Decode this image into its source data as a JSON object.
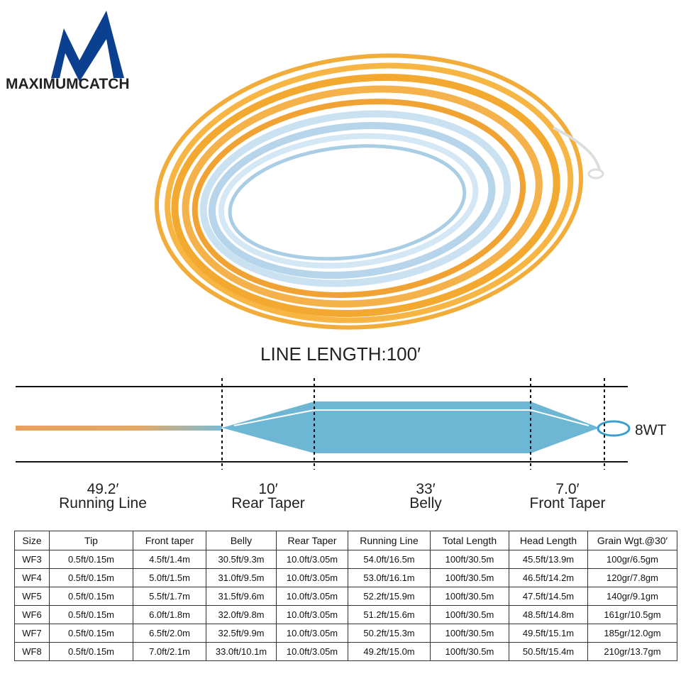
{
  "brand": "MAXIMUMCATCH",
  "diagram": {
    "title": "LINE LENGTH:100′",
    "weight": "8WT",
    "segments": [
      {
        "length": "49.2′",
        "name": "Running Line"
      },
      {
        "length": "10′",
        "name": "Rear Taper"
      },
      {
        "length": "33′",
        "name": "Belly"
      },
      {
        "length": "7.0′",
        "name": "Front Taper"
      }
    ]
  },
  "table": {
    "header": [
      "Size",
      "Tip",
      "Front taper",
      "Belly",
      "Rear Taper",
      "Running Line",
      "Total Length",
      "Head Length",
      "Grain Wgt.@30′"
    ],
    "rows": [
      [
        "WF3",
        "0.5ft/0.15m",
        "4.5ft/1.4m",
        "30.5ft/9.3m",
        "10.0ft/3.05m",
        "54.0ft/16.5m",
        "100ft/30.5m",
        "45.5ft/13.9m",
        "100gr/6.5gm"
      ],
      [
        "WF4",
        "0.5ft/0.15m",
        "5.0ft/1.5m",
        "31.0ft/9.5m",
        "10.0ft/3.05m",
        "53.0ft/16.1m",
        "100ft/30.5m",
        "46.5ft/14.2m",
        "120gr/7.8gm"
      ],
      [
        "WF5",
        "0.5ft/0.15m",
        "5.5ft/1.7m",
        "31.5ft/9.6m",
        "10.0ft/3.05m",
        "52.2ft/15.9m",
        "100ft/30.5m",
        "47.5ft/14.5m",
        "140gr/9.1gm"
      ],
      [
        "WF6",
        "0.5ft/0.15m",
        "6.0ft/1.8m",
        "32.0ft/9.8m",
        "10.0ft/3.05m",
        "51.2ft/15.6m",
        "100ft/30.5m",
        "48.5ft/14.8m",
        "161gr/10.5gm"
      ],
      [
        "WF7",
        "0.5ft/0.15m",
        "6.5ft/2.0m",
        "32.5ft/9.9m",
        "10.0ft/3.05m",
        "50.2ft/15.3m",
        "100ft/30.5m",
        "49.5ft/15.1m",
        "185gr/12.0gm"
      ],
      [
        "WF8",
        "0.5ft/0.15m",
        "7.0ft/2.1m",
        "33.0ft/10.1m",
        "10.0ft/3.05m",
        "49.2ft/15.0m",
        "100ft/30.5m",
        "50.5ft/15.4m",
        "210gr/13.7gm"
      ]
    ]
  }
}
